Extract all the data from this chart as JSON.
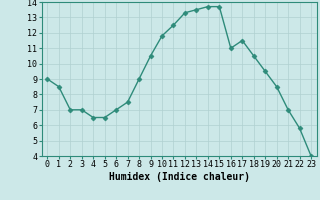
{
  "x": [
    0,
    1,
    2,
    3,
    4,
    5,
    6,
    7,
    8,
    9,
    10,
    11,
    12,
    13,
    14,
    15,
    16,
    17,
    18,
    19,
    20,
    21,
    22,
    23
  ],
  "y": [
    9.0,
    8.5,
    7.0,
    7.0,
    6.5,
    6.5,
    7.0,
    7.5,
    9.0,
    10.5,
    11.8,
    12.5,
    13.3,
    13.5,
    13.7,
    13.7,
    11.0,
    11.5,
    10.5,
    9.5,
    8.5,
    7.0,
    5.8,
    4.0
  ],
  "line_color": "#2e8b7a",
  "marker": "D",
  "markersize": 2.5,
  "linewidth": 1.0,
  "xlabel": "Humidex (Indice chaleur)",
  "xlabel_fontsize": 7,
  "background_color": "#cce8e8",
  "grid_color": "#b0d0d0",
  "ylim": [
    4,
    14
  ],
  "xlim": [
    -0.5,
    23.5
  ],
  "yticks": [
    4,
    5,
    6,
    7,
    8,
    9,
    10,
    11,
    12,
    13,
    14
  ],
  "xticks": [
    0,
    1,
    2,
    3,
    4,
    5,
    6,
    7,
    8,
    9,
    10,
    11,
    12,
    13,
    14,
    15,
    16,
    17,
    18,
    19,
    20,
    21,
    22,
    23
  ],
  "tick_fontsize": 6
}
